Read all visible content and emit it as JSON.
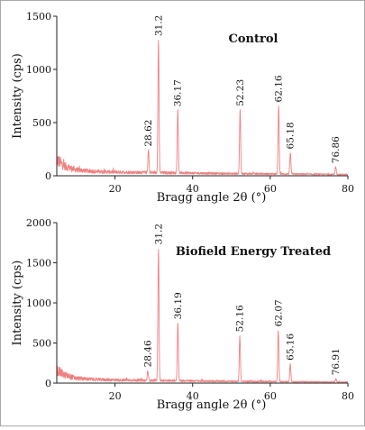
{
  "chart_data": [
    {
      "type": "line",
      "title": "Control",
      "xlabel": "Bragg angle 2θ (°)",
      "ylabel": "Intensity (cps)",
      "xlim": [
        5,
        80
      ],
      "ylim": [
        0,
        1500
      ],
      "xticks": [
        20,
        40,
        60,
        80
      ],
      "yticks": [
        0,
        500,
        1000,
        1500
      ],
      "line_color": "#f08080",
      "background_baseline": [
        [
          5,
          150
        ],
        [
          7,
          90
        ],
        [
          10,
          55
        ],
        [
          15,
          40
        ],
        [
          20,
          35
        ],
        [
          25,
          32
        ],
        [
          30,
          30
        ],
        [
          40,
          25
        ],
        [
          50,
          20
        ],
        [
          60,
          18
        ],
        [
          70,
          15
        ],
        [
          80,
          12
        ]
      ],
      "peaks": [
        {
          "x": 28.62,
          "label": "28.62",
          "height": 210
        },
        {
          "x": 31.2,
          "label": "31.2",
          "height": 1250
        },
        {
          "x": 36.17,
          "label": "36.17",
          "height": 590
        },
        {
          "x": 52.23,
          "label": "52.23",
          "height": 600
        },
        {
          "x": 62.16,
          "label": "62.16",
          "height": 640
        },
        {
          "x": 65.18,
          "label": "65.18",
          "height": 200
        },
        {
          "x": 76.86,
          "label": "76.86",
          "height": 70
        }
      ]
    },
    {
      "type": "line",
      "title": "Biofield Energy Treated",
      "xlabel": "Bragg angle 2θ (°)",
      "ylabel": "Intensity (cps)",
      "xlim": [
        5,
        80
      ],
      "ylim": [
        0,
        2000
      ],
      "xticks": [
        20,
        40,
        60,
        80
      ],
      "yticks": [
        0,
        500,
        1000,
        1500,
        2000
      ],
      "line_color": "#f08080",
      "background_baseline": [
        [
          5,
          160
        ],
        [
          7,
          100
        ],
        [
          10,
          60
        ],
        [
          15,
          45
        ],
        [
          20,
          40
        ],
        [
          25,
          35
        ],
        [
          30,
          32
        ],
        [
          40,
          28
        ],
        [
          50,
          22
        ],
        [
          60,
          20
        ],
        [
          70,
          16
        ],
        [
          80,
          12
        ]
      ],
      "peaks": [
        {
          "x": 28.46,
          "label": "28.46",
          "height": 120
        },
        {
          "x": 31.2,
          "label": "31.2",
          "height": 1650
        },
        {
          "x": 36.19,
          "label": "36.19",
          "height": 720
        },
        {
          "x": 52.16,
          "label": "52.16",
          "height": 570
        },
        {
          "x": 62.07,
          "label": "62.07",
          "height": 640
        },
        {
          "x": 65.16,
          "label": "65.16",
          "height": 220
        },
        {
          "x": 76.91,
          "label": "76.91",
          "height": 40
        }
      ]
    }
  ]
}
